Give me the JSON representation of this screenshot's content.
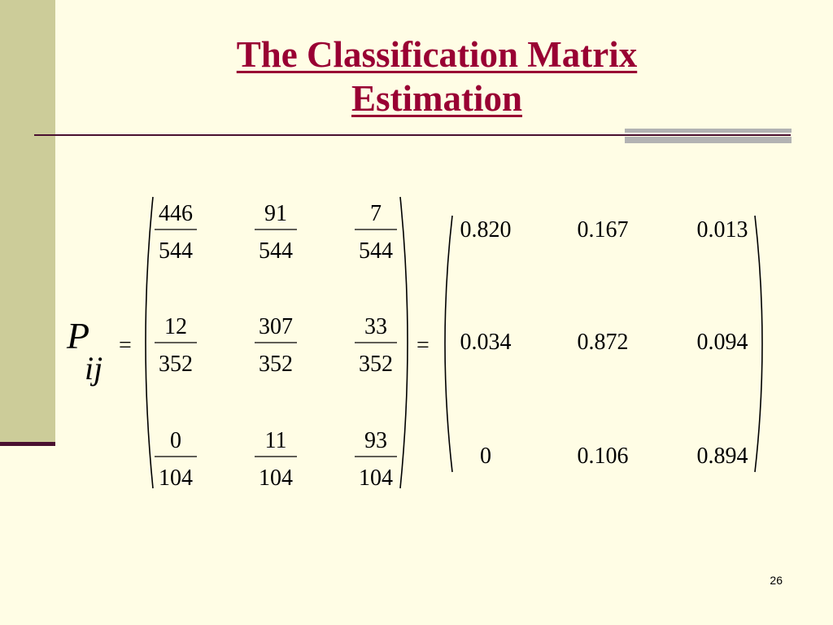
{
  "slide": {
    "title_line1": "The Classification Matrix",
    "title_line2": "Estimation",
    "page_number": "26"
  },
  "equation": {
    "lhs_symbol": "P",
    "lhs_subscript": "ij",
    "equals": "=",
    "fractions": [
      [
        {
          "num": "446",
          "den": "544"
        },
        {
          "num": "91",
          "den": "544"
        },
        {
          "num": "7",
          "den": "544"
        }
      ],
      [
        {
          "num": "12",
          "den": "352"
        },
        {
          "num": "307",
          "den": "352"
        },
        {
          "num": "33",
          "den": "352"
        }
      ],
      [
        {
          "num": "0",
          "den": "104"
        },
        {
          "num": "11",
          "den": "104"
        },
        {
          "num": "93",
          "den": "104"
        }
      ]
    ],
    "decimals": [
      [
        "0.820",
        "0.167",
        "0.013"
      ],
      [
        "0.034",
        "0.872",
        "0.094"
      ],
      [
        "0",
        "0.106",
        "0.894"
      ]
    ]
  }
}
